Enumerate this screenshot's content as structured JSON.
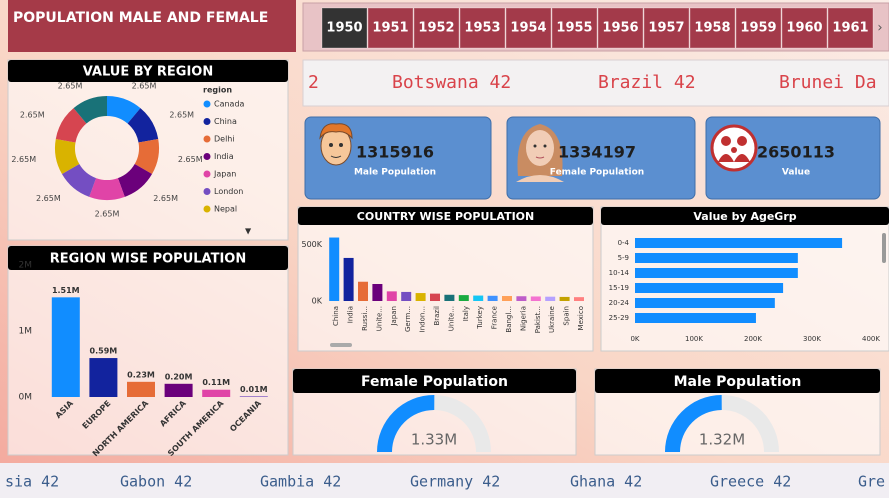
{
  "header": {
    "title": "POPULATION MALE AND FEMALE"
  },
  "year_slicer": {
    "years": [
      "1950",
      "1951",
      "1952",
      "1953",
      "1954",
      "1955",
      "1956",
      "1957",
      "1958",
      "1959",
      "1960",
      "1961"
    ],
    "selected": 0
  },
  "ticker_top": [
    "2",
    "Botswana 42",
    "Brazil 42",
    "Brunei Da"
  ],
  "cards": [
    {
      "value": 1315916,
      "label": "Male Population"
    },
    {
      "value": 1334197,
      "label": "Female Population"
    },
    {
      "value": 2650113,
      "label": "Value"
    }
  ],
  "ticker_bottom": [
    "sia 42",
    "Gabon 42",
    "Gambia 42",
    "Germany 42",
    "Ghana 42",
    "Greece 42",
    "Gre"
  ],
  "chart_data": [
    {
      "type": "pie",
      "donut": true,
      "title": "VALUE BY REGION",
      "legend_title": "region",
      "categories": [
        "Canada",
        "China",
        "Delhi",
        "India",
        "Japan",
        "London",
        "Nepal",
        null,
        null
      ],
      "values": [
        2650000,
        2650000,
        2650000,
        2650000,
        2650000,
        2650000,
        2650000,
        2650000,
        2650000
      ],
      "value_labels": [
        "2.65M",
        "2.65M",
        "2.65M",
        "2.65M",
        "2.65M",
        "2.65M",
        "2.65M",
        "2.65M",
        "2.65M"
      ],
      "colors": [
        "#118DFF",
        "#12239E",
        "#E66C37",
        "#6B007B",
        "#E044A7",
        "#744EC2",
        "#D9B300",
        "#D64550",
        "#197278"
      ]
    },
    {
      "type": "bar",
      "title": "REGION WISE POPULATION",
      "categories": [
        "ASIA",
        "EUROPE",
        "NORTH AMERICA",
        "AFRICA",
        "SOUTH AMERICA",
        "OCEANIA"
      ],
      "values": [
        1510000,
        590000,
        230000,
        200000,
        110000,
        10000
      ],
      "value_labels": [
        "1.51M",
        "0.59M",
        "0.23M",
        "0.20M",
        "0.11M",
        "0.01M"
      ],
      "colors": [
        "#118DFF",
        "#12239E",
        "#E66C37",
        "#6B007B",
        "#E044A7",
        "#744EC2"
      ],
      "ylim": [
        0,
        2000000
      ],
      "yticks": [
        {
          "value": 0,
          "label": "0M"
        },
        {
          "value": 1000000,
          "label": "1M"
        },
        {
          "value": 2000000,
          "label": "2M"
        }
      ]
    },
    {
      "type": "bar",
      "title": "COUNTRY WISE POPULATION",
      "categories": [
        "China",
        "India",
        "Russi...",
        "Unite...",
        "Japan",
        "Germ...",
        "Indon...",
        "Brazil",
        "Unite...",
        "Italy",
        "Turkey",
        "France",
        "Bangl...",
        "Nigeria",
        "Pakist...",
        "Ukraine",
        "Spain",
        "Mexico"
      ],
      "values": [
        560000,
        380000,
        170000,
        150000,
        85000,
        80000,
        70000,
        65000,
        55000,
        52000,
        48000,
        46000,
        44000,
        42000,
        40000,
        38000,
        36000,
        34000
      ],
      "colors": [
        "#118DFF",
        "#12239E",
        "#E66C37",
        "#6B007B",
        "#E044A7",
        "#744EC2",
        "#D9B300",
        "#D64550",
        "#197278",
        "#1AAB40",
        "#15C6F4",
        "#4092FF",
        "#FFA058",
        "#BE5DC9",
        "#F472D0",
        "#B5A1FF",
        "#C4A200",
        "#FF8080"
      ],
      "ylim": [
        0,
        600000
      ],
      "yticks": [
        {
          "value": 0,
          "label": "0K"
        },
        {
          "value": 500000,
          "label": "500K"
        }
      ]
    },
    {
      "type": "hbar",
      "title": "Value by AgeGrp",
      "categories": [
        "0-4",
        "5-9",
        "10-14",
        "15-19",
        "20-24",
        "25-29"
      ],
      "values": [
        351000,
        276000,
        276000,
        251000,
        237000,
        205000
      ],
      "color": "#118DFF",
      "xlim": [
        0,
        400000
      ],
      "xticks": [
        {
          "value": 0,
          "label": "0K"
        },
        {
          "value": 100000,
          "label": "100K"
        },
        {
          "value": 200000,
          "label": "200K"
        },
        {
          "value": 300000,
          "label": "300K"
        },
        {
          "value": 400000,
          "label": "400K"
        }
      ]
    },
    {
      "type": "gauge",
      "title": "Female Population",
      "values": [
        1330000
      ],
      "value_labels": [
        "1.33M"
      ],
      "ylim": [
        0,
        2650000
      ],
      "color": "#118DFF"
    },
    {
      "type": "gauge",
      "title": "Male Population",
      "values": [
        1320000
      ],
      "value_labels": [
        "1.32M"
      ],
      "ylim": [
        0,
        2650000
      ],
      "color": "#118DFF"
    }
  ]
}
